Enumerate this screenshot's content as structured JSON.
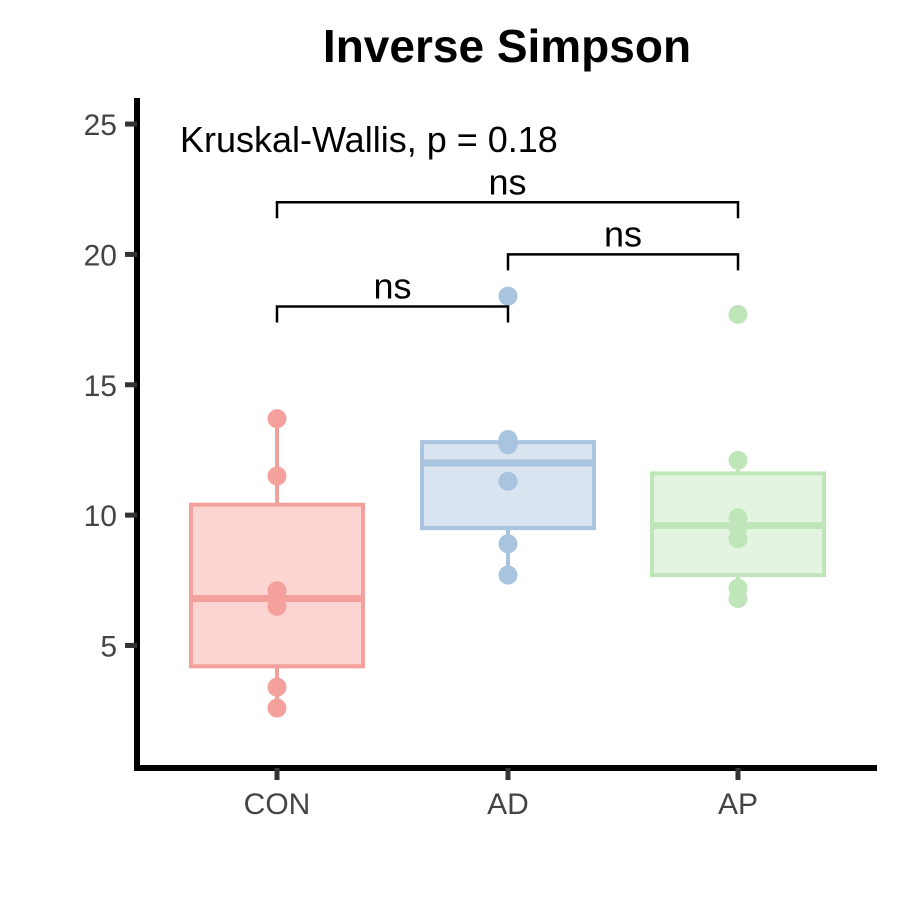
{
  "chart_data": {
    "type": "boxplot",
    "title": "Inverse Simpson",
    "xlabel": "",
    "ylabel": "",
    "ylim": [
      0.3,
      26
    ],
    "yticks": [
      5,
      10,
      15,
      20,
      25
    ],
    "categories": [
      "CON",
      "AD",
      "AP"
    ],
    "colors": {
      "CON": {
        "stroke": "#F4A09C",
        "fill": "#FCD0CE"
      },
      "AD": {
        "stroke": "#A8C4DF",
        "fill": "#D4E1EE"
      },
      "AP": {
        "stroke": "#C1E5BB",
        "fill": "#E0F3DD"
      }
    },
    "groups": [
      {
        "name": "CON",
        "q1": 4.2,
        "median": 6.8,
        "q3": 10.4,
        "whisker_low": 2.6,
        "whisker_high": 13.7,
        "points": [
          13.7,
          11.5,
          7.1,
          6.8,
          6.5,
          3.4,
          2.6
        ]
      },
      {
        "name": "AD",
        "q1": 9.5,
        "median": 12.0,
        "q3": 12.8,
        "whisker_low": 7.7,
        "whisker_high": 12.8,
        "points": [
          18.4,
          12.9,
          12.7,
          11.3,
          8.9,
          7.7
        ]
      },
      {
        "name": "AP",
        "q1": 7.7,
        "median": 9.6,
        "q3": 11.6,
        "whisker_low": 6.8,
        "whisker_high": 12.1,
        "points": [
          17.7,
          12.1,
          9.9,
          9.5,
          9.1,
          7.2,
          6.8
        ]
      }
    ],
    "annotation": "Kruskal-Wallis, p = 0.18",
    "comparisons": [
      {
        "from": "CON",
        "to": "AD",
        "y": 18.0,
        "label": "ns"
      },
      {
        "from": "AD",
        "to": "AP",
        "y": 20.0,
        "label": "ns"
      },
      {
        "from": "CON",
        "to": "AP",
        "y": 22.0,
        "label": "ns"
      }
    ]
  }
}
